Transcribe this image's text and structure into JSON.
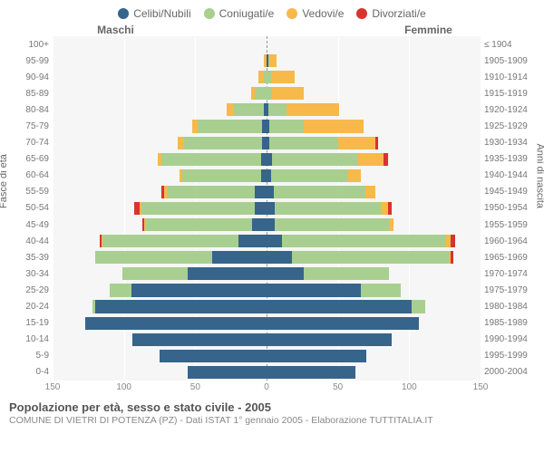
{
  "legend": [
    {
      "label": "Celibi/Nubili",
      "color": "#36648b"
    },
    {
      "label": "Coniugati/e",
      "color": "#a8cf8f"
    },
    {
      "label": "Vedovi/e",
      "color": "#f6b94a"
    },
    {
      "label": "Divorziati/e",
      "color": "#d6342f"
    }
  ],
  "side_titles": {
    "male": "Maschi",
    "female": "Femmine"
  },
  "axis_labels": {
    "left": "Fasce di età",
    "right": "Anni di nascita"
  },
  "caption": "Popolazione per età, sesso e stato civile - 2005",
  "subcaption": "COMUNE DI VIETRI DI POTENZA (PZ) - Dati ISTAT 1° gennaio 2005 - Elaborazione TUTTITALIA.IT",
  "x_max": 150,
  "x_ticks": [
    150,
    100,
    50,
    0,
    50,
    100,
    150
  ],
  "background_color": "#f6f6f6",
  "grid_color": "#ffffff",
  "rows": [
    {
      "age": "100+",
      "birth": "≤ 1904",
      "m": [
        0,
        0,
        0,
        0
      ],
      "f": [
        0,
        0,
        0,
        0
      ]
    },
    {
      "age": "95-99",
      "birth": "1905-1909",
      "m": [
        0,
        0,
        2,
        0
      ],
      "f": [
        1,
        1,
        5,
        0
      ]
    },
    {
      "age": "90-94",
      "birth": "1910-1914",
      "m": [
        0,
        2,
        4,
        0
      ],
      "f": [
        0,
        3,
        17,
        0
      ]
    },
    {
      "age": "85-89",
      "birth": "1915-1919",
      "m": [
        0,
        8,
        3,
        0
      ],
      "f": [
        0,
        4,
        22,
        0
      ]
    },
    {
      "age": "80-84",
      "birth": "1920-1924",
      "m": [
        2,
        21,
        5,
        0
      ],
      "f": [
        1,
        13,
        37,
        0
      ]
    },
    {
      "age": "75-79",
      "birth": "1925-1929",
      "m": [
        3,
        45,
        4,
        0
      ],
      "f": [
        2,
        24,
        42,
        0
      ]
    },
    {
      "age": "70-74",
      "birth": "1930-1934",
      "m": [
        3,
        55,
        4,
        0
      ],
      "f": [
        2,
        48,
        26,
        2
      ]
    },
    {
      "age": "65-69",
      "birth": "1935-1939",
      "m": [
        4,
        70,
        2,
        0
      ],
      "f": [
        4,
        60,
        18,
        3
      ]
    },
    {
      "age": "60-64",
      "birth": "1940-1944",
      "m": [
        4,
        55,
        2,
        0
      ],
      "f": [
        3,
        54,
        9,
        0
      ]
    },
    {
      "age": "55-59",
      "birth": "1945-1949",
      "m": [
        8,
        62,
        2,
        2
      ],
      "f": [
        5,
        64,
        7,
        0
      ]
    },
    {
      "age": "50-54",
      "birth": "1950-1954",
      "m": [
        8,
        80,
        1,
        4
      ],
      "f": [
        6,
        74,
        5,
        3
      ]
    },
    {
      "age": "45-49",
      "birth": "1955-1959",
      "m": [
        10,
        75,
        1,
        1
      ],
      "f": [
        6,
        80,
        3,
        0
      ]
    },
    {
      "age": "40-44",
      "birth": "1960-1964",
      "m": [
        20,
        95,
        1,
        1
      ],
      "f": [
        11,
        115,
        3,
        3
      ]
    },
    {
      "age": "35-39",
      "birth": "1965-1969",
      "m": [
        38,
        82,
        0,
        0
      ],
      "f": [
        18,
        110,
        1,
        2
      ]
    },
    {
      "age": "30-34",
      "birth": "1970-1974",
      "m": [
        55,
        46,
        0,
        0
      ],
      "f": [
        26,
        60,
        0,
        0
      ]
    },
    {
      "age": "25-29",
      "birth": "1975-1979",
      "m": [
        95,
        15,
        0,
        0
      ],
      "f": [
        66,
        28,
        0,
        0
      ]
    },
    {
      "age": "20-24",
      "birth": "1980-1984",
      "m": [
        120,
        2,
        0,
        0
      ],
      "f": [
        102,
        9,
        0,
        0
      ]
    },
    {
      "age": "15-19",
      "birth": "1985-1989",
      "m": [
        127,
        0,
        0,
        0
      ],
      "f": [
        107,
        0,
        0,
        0
      ]
    },
    {
      "age": "10-14",
      "birth": "1990-1994",
      "m": [
        94,
        0,
        0,
        0
      ],
      "f": [
        88,
        0,
        0,
        0
      ]
    },
    {
      "age": "5-9",
      "birth": "1995-1999",
      "m": [
        75,
        0,
        0,
        0
      ],
      "f": [
        70,
        0,
        0,
        0
      ]
    },
    {
      "age": "0-4",
      "birth": "2000-2004",
      "m": [
        55,
        0,
        0,
        0
      ],
      "f": [
        62,
        0,
        0,
        0
      ]
    }
  ]
}
